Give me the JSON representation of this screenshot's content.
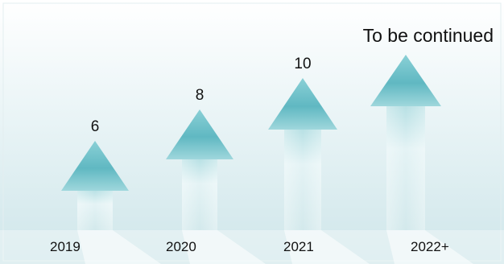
{
  "chart_data": {
    "type": "bar",
    "title": "",
    "xlabel": "",
    "ylabel": "",
    "categories": [
      "2019",
      "2020",
      "2021",
      "2022+"
    ],
    "values": [
      6,
      8,
      10,
      null
    ],
    "annotations": [
      {
        "category": "2022+",
        "text": "To be continued"
      }
    ],
    "grid": false,
    "legend": "none"
  },
  "colors": {
    "background_top": "#ffffff",
    "background_bottom": "#cde6ea",
    "arrow_light": "#d7eef1",
    "arrow_mid": "#7cc4cc",
    "arrow_dark": "#62b7c2",
    "ground": "#ffffff",
    "text": "#111111"
  }
}
